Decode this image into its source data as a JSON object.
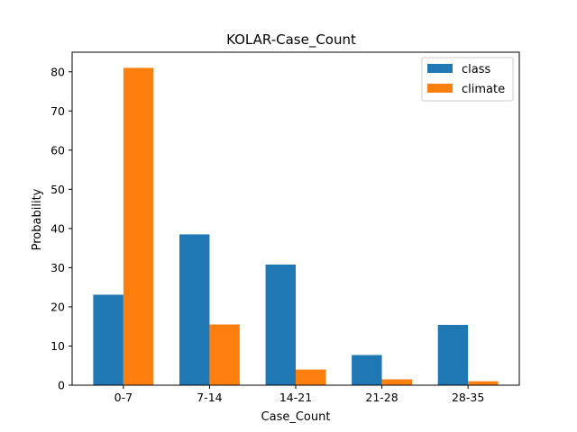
{
  "chart_data": {
    "type": "bar",
    "title": "KOLAR-Case_Count",
    "xlabel": "Case_Count",
    "ylabel": "Probability",
    "categories": [
      "0-7",
      "7-14",
      "14-21",
      "21-28",
      "28-35"
    ],
    "series": [
      {
        "name": "class",
        "color": "#1f77b4",
        "values": [
          23.1,
          38.5,
          30.8,
          7.7,
          15.4
        ]
      },
      {
        "name": "climate",
        "color": "#ff7f0e",
        "values": [
          81.0,
          15.5,
          4.0,
          1.5,
          1.0
        ]
      }
    ],
    "ylim": [
      0,
      85
    ],
    "yticks": [
      0,
      10,
      20,
      30,
      40,
      50,
      60,
      70,
      80
    ],
    "grid": false,
    "legend_position": "top-right"
  }
}
